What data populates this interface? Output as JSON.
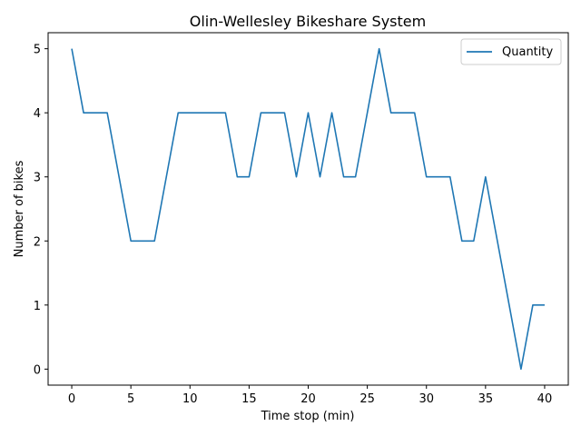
{
  "chart_data": {
    "type": "line",
    "title": "Olin-Wellesley Bikeshare System",
    "xlabel": "Time stop (min)",
    "ylabel": "Number of bikes",
    "xlim": [
      -2,
      42
    ],
    "ylim": [
      -0.25,
      5.25
    ],
    "xticks": [
      0,
      5,
      10,
      15,
      20,
      25,
      30,
      35,
      40
    ],
    "yticks": [
      0,
      1,
      2,
      3,
      4,
      5
    ],
    "grid": false,
    "legend_position": "top-right",
    "series": [
      {
        "name": "Quantity",
        "color": "#1f77b4",
        "x": [
          0,
          1,
          2,
          3,
          4,
          5,
          6,
          7,
          8,
          9,
          10,
          11,
          12,
          13,
          14,
          15,
          16,
          17,
          18,
          19,
          20,
          21,
          22,
          23,
          24,
          25,
          26,
          27,
          28,
          29,
          30,
          31,
          32,
          33,
          34,
          35,
          36,
          37,
          38,
          39,
          40
        ],
        "y": [
          5,
          4,
          4,
          4,
          3,
          2,
          2,
          2,
          3,
          4,
          4,
          4,
          4,
          4,
          3,
          3,
          4,
          4,
          4,
          3,
          4,
          3,
          4,
          3,
          3,
          4,
          5,
          4,
          4,
          4,
          3,
          3,
          3,
          2,
          2,
          3,
          2,
          1,
          0,
          1,
          1
        ]
      }
    ]
  }
}
